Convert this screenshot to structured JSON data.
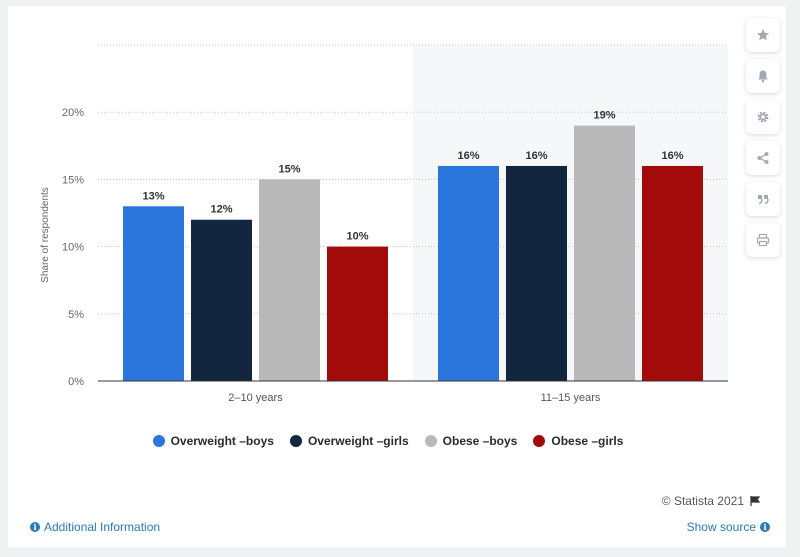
{
  "chart_data": {
    "type": "bar",
    "categories": [
      "2–10 years",
      "11–15 years"
    ],
    "series": [
      {
        "name": "Overweight –boys",
        "values": [
          13,
          16
        ],
        "color": "#2a76dd"
      },
      {
        "name": "Overweight –girls",
        "values": [
          12,
          16
        ],
        "color": "#12263f"
      },
      {
        "name": "Obese –boys",
        "values": [
          15,
          19
        ],
        "color": "#b9b9b9"
      },
      {
        "name": "Obese –girls",
        "values": [
          10,
          16
        ],
        "color": "#a30a0a"
      }
    ],
    "data_labels": [
      [
        "13%",
        "16%"
      ],
      [
        "12%",
        "16%"
      ],
      [
        "15%",
        "19%"
      ],
      [
        "10%",
        "16%"
      ]
    ],
    "ylabel": "Share of respondents",
    "yticks": [
      0,
      5,
      10,
      15,
      20
    ],
    "ytick_labels": [
      "0%",
      "5%",
      "10%",
      "15%",
      "20%"
    ],
    "ylim": [
      0,
      25
    ],
    "grid": true,
    "legend": "bottom-center",
    "highlighted_category_index": 1
  },
  "legend_items": [
    {
      "label": "Overweight –boys",
      "color": "#2a76dd"
    },
    {
      "label": "Overweight –girls",
      "color": "#12263f"
    },
    {
      "label": "Obese –boys",
      "color": "#b9b9b9"
    },
    {
      "label": "Obese –girls",
      "color": "#a30a0a"
    }
  ],
  "toolbar": {
    "icons": [
      "star-icon",
      "bell-icon",
      "gear-icon",
      "share-icon",
      "quote-icon",
      "print-icon"
    ]
  },
  "footer": {
    "credit": "© Statista 2021",
    "additional_info": "Additional Information",
    "show_source": "Show source"
  }
}
